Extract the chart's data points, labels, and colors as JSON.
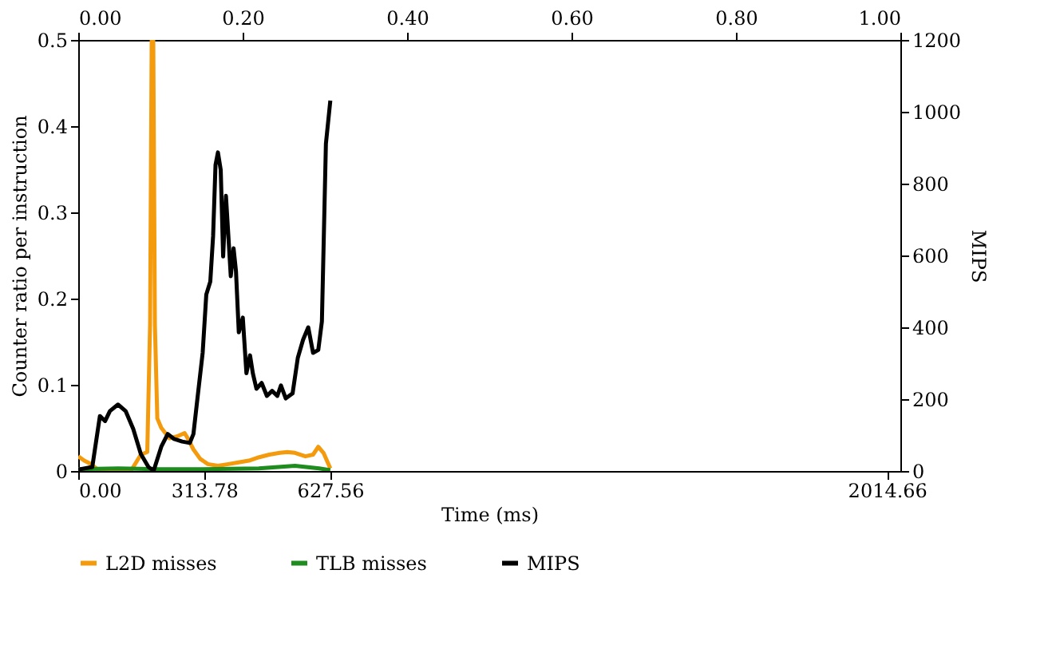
{
  "chart_data": {
    "type": "line",
    "xlabel": "Time (ms)",
    "ylabel": "Counter ratio per instruction",
    "y2label": "MIPS",
    "xlim": [
      0,
      2048
    ],
    "xticks": [
      {
        "value": 0,
        "label": "0.00"
      },
      {
        "value": 313.78,
        "label": "313.78"
      },
      {
        "value": 627.56,
        "label": "627.56"
      },
      {
        "value": 2014.66,
        "label": "2014.66"
      }
    ],
    "x2lim": [
      0,
      1
    ],
    "x2ticks": [
      {
        "value": 0,
        "label": "0.00"
      },
      {
        "value": 0.2,
        "label": "0.20"
      },
      {
        "value": 0.4,
        "label": "0.40"
      },
      {
        "value": 0.6,
        "label": "0.60"
      },
      {
        "value": 0.8,
        "label": "0.80"
      },
      {
        "value": 1,
        "label": "1.00"
      }
    ],
    "ylim": [
      0,
      0.5
    ],
    "yticks": [
      0,
      0.1,
      0.2,
      0.3,
      0.4,
      0.5
    ],
    "y2lim": [
      0,
      1200
    ],
    "y2ticks": [
      0,
      200,
      400,
      600,
      800,
      1000,
      1200
    ],
    "grid": false,
    "legend": "bottom",
    "line_style": "solid",
    "series": [
      {
        "name": "L2D misses",
        "color": "#f39b0d",
        "x": [
          0,
          15,
          28,
          54,
          79,
          131,
          156,
          172,
          179,
          183,
          187,
          191,
          197,
          207,
          227,
          246,
          265,
          274,
          287,
          304,
          323,
          348,
          374,
          399,
          425,
          451,
          476,
          502,
          521,
          540,
          566,
          585,
          598,
          611,
          628
        ],
        "values": [
          0.017,
          0.012,
          0.009,
          0,
          0,
          0,
          0.019,
          0.022,
          0.17,
          0.5,
          0.5,
          0.17,
          0.061,
          0.05,
          0.038,
          0.04,
          0.044,
          0.037,
          0.025,
          0.014,
          0.008,
          0.006,
          0.008,
          0.01,
          0.012,
          0.016,
          0.019,
          0.021,
          0.022,
          0.021,
          0.017,
          0.019,
          0.028,
          0.021,
          0.003
        ]
      },
      {
        "name": "TLB misses",
        "color": "#1e8c1e",
        "x": [
          0,
          100,
          200,
          300,
          450,
          540,
          600,
          628
        ],
        "values": [
          0.002,
          0.003,
          0.002,
          0.002,
          0.003,
          0.006,
          0.003,
          0.001
        ]
      },
      {
        "name": "MIPS",
        "color": "#000000",
        "axis": "y2",
        "x": [
          0,
          35,
          54,
          67,
          79,
          99,
          118,
          137,
          156,
          175,
          188,
          207,
          223,
          239,
          259,
          278,
          287,
          297,
          310,
          319,
          329,
          336,
          342,
          348,
          355,
          361,
          368,
          374,
          380,
          387,
          393,
          400,
          410,
          419,
          428,
          435,
          444,
          457,
          470,
          483,
          496,
          505,
          517,
          534,
          547,
          560,
          573,
          585,
          598,
          607,
          617,
          628
        ],
        "values": [
          4,
          11,
          153,
          139,
          167,
          185,
          167,
          117,
          47,
          11,
          1,
          68,
          103,
          89,
          82,
          78,
          103,
          202,
          329,
          491,
          527,
          654,
          852,
          887,
          838,
          597,
          766,
          655,
          542,
          620,
          556,
          386,
          427,
          272,
          322,
          272,
          229,
          245,
          209,
          223,
          209,
          238,
          202,
          216,
          315,
          365,
          400,
          329,
          337,
          416,
          911,
          1031
        ]
      }
    ]
  }
}
